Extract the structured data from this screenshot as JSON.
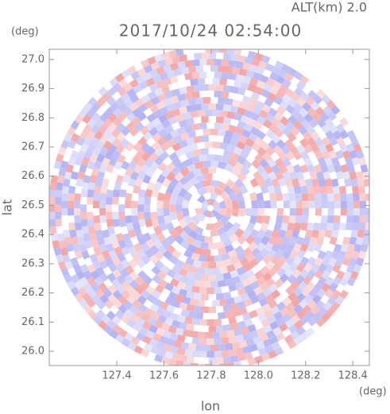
{
  "chart_data": {
    "type": "radar-ppi",
    "title": "2017/10/24 02:54:00",
    "subtitle": "ALT(km) 2.0",
    "x_label": "lon",
    "y_label": "lat",
    "x_unit": "(deg)",
    "y_unit": "(deg)",
    "xlim": [
      127.114,
      128.47
    ],
    "ylim": [
      25.951,
      27.035
    ],
    "xticks": [
      127.4,
      127.6,
      127.8,
      {
        "value": 128,
        "label": "128.0"
      },
      128.2,
      128.4
    ],
    "yticks": [
      {
        "value": 26,
        "label": "26.0"
      },
      26.1,
      26.2,
      26.3,
      26.4,
      26.5,
      26.6,
      26.7,
      26.8,
      26.9,
      {
        "value": 27,
        "label": "27.0"
      }
    ]
  }
}
